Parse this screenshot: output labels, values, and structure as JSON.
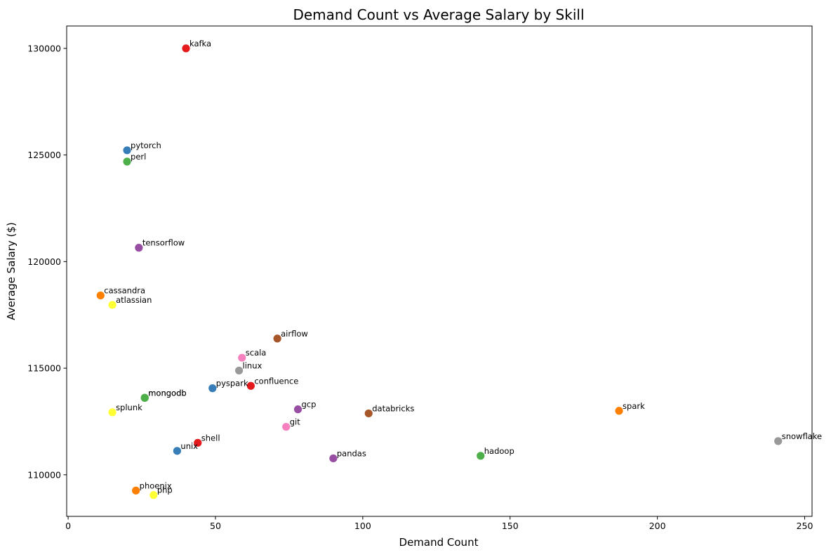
{
  "chart_data": {
    "type": "scatter",
    "title": "Demand Count vs Average Salary by Skill",
    "xlabel": "Demand Count",
    "ylabel": "Average Salary ($)",
    "xlim": [
      -0.5,
      252.5
    ],
    "ylim": [
      108050,
      131050
    ],
    "xticks": [
      0,
      50,
      100,
      150,
      200,
      250
    ],
    "yticks": [
      110000,
      115000,
      120000,
      125000,
      130000
    ],
    "grid": false,
    "points": [
      {
        "label": "kafka",
        "x": 40,
        "y": 130000,
        "color": "#e41a1c"
      },
      {
        "label": "pytorch",
        "x": 20,
        "y": 125220,
        "color": "#377eb8"
      },
      {
        "label": "perl",
        "x": 20,
        "y": 124690,
        "color": "#4daf4a"
      },
      {
        "label": "tensorflow",
        "x": 24,
        "y": 120650,
        "color": "#984ea3"
      },
      {
        "label": "cassandra",
        "x": 11,
        "y": 118410,
        "color": "#ff7f00"
      },
      {
        "label": "atlassian",
        "x": 15,
        "y": 117970,
        "color": "#ffff33"
      },
      {
        "label": "airflow",
        "x": 71,
        "y": 116390,
        "color": "#a65628"
      },
      {
        "label": "scala",
        "x": 59,
        "y": 115490,
        "color": "#f781bf"
      },
      {
        "label": "linux",
        "x": 58,
        "y": 114890,
        "color": "#999999"
      },
      {
        "label": "confluence",
        "x": 62,
        "y": 114170,
        "color": "#e41a1c"
      },
      {
        "label": "pyspark",
        "x": 49,
        "y": 114060,
        "color": "#377eb8"
      },
      {
        "label": "mongodb",
        "x": 26,
        "y": 113610,
        "color": "#4daf4a"
      },
      {
        "label": "mongodb",
        "x": 26,
        "y": 113610,
        "color": "#4daf4a"
      },
      {
        "label": "gcp",
        "x": 78,
        "y": 113070,
        "color": "#984ea3"
      },
      {
        "label": "spark",
        "x": 187,
        "y": 113000,
        "color": "#ff7f00"
      },
      {
        "label": "splunk",
        "x": 15,
        "y": 112930,
        "color": "#ffff33"
      },
      {
        "label": "databricks",
        "x": 102,
        "y": 112880,
        "color": "#a65628"
      },
      {
        "label": "git",
        "x": 74,
        "y": 112250,
        "color": "#f781bf"
      },
      {
        "label": "snowflake",
        "x": 241,
        "y": 111580,
        "color": "#999999"
      },
      {
        "label": "shell",
        "x": 44,
        "y": 111500,
        "color": "#e41a1c"
      },
      {
        "label": "unix",
        "x": 37,
        "y": 111120,
        "color": "#377eb8"
      },
      {
        "label": "hadoop",
        "x": 140,
        "y": 110890,
        "color": "#4daf4a"
      },
      {
        "label": "pandas",
        "x": 90,
        "y": 110770,
        "color": "#984ea3"
      },
      {
        "label": "phoenix",
        "x": 23,
        "y": 109260,
        "color": "#ff7f00"
      },
      {
        "label": "php",
        "x": 29,
        "y": 109050,
        "color": "#ffff33"
      }
    ]
  }
}
